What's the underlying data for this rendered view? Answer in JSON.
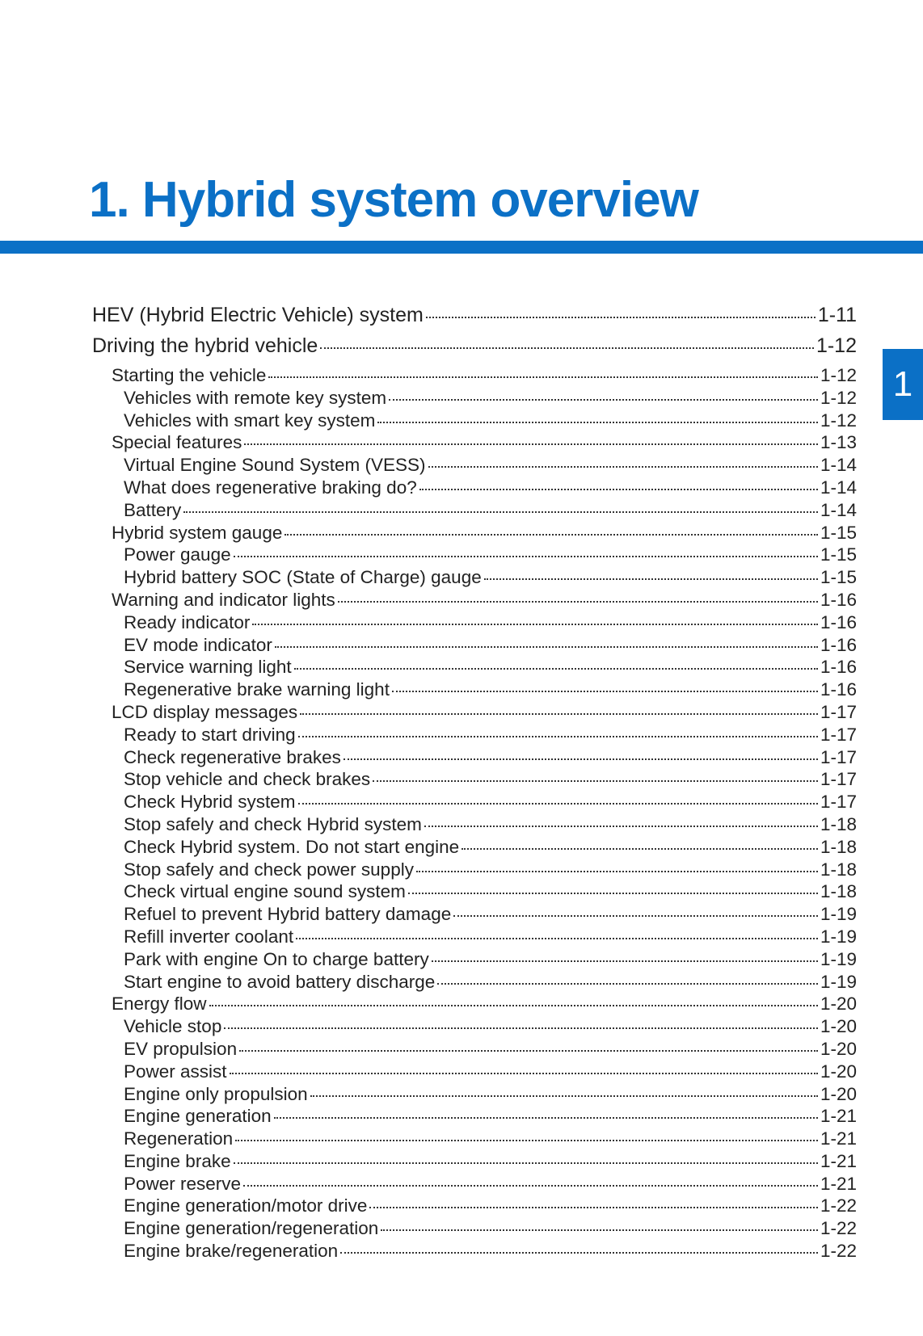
{
  "title": "1. Hybrid system overview",
  "chapter_tab": "1",
  "accent_color": "#0b70c6",
  "toc": [
    {
      "level": 0,
      "label": "HEV (Hybrid Electric Vehicle) system",
      "page": "1-11"
    },
    {
      "level": 0,
      "label": "Driving the hybrid vehicle",
      "page": "1-12"
    },
    {
      "level": 1,
      "label": "Starting the vehicle",
      "page": "1-12"
    },
    {
      "level": 2,
      "label": "Vehicles with remote key system",
      "page": "1-12"
    },
    {
      "level": 2,
      "label": "Vehicles with smart key system",
      "page": "1-12"
    },
    {
      "level": 1,
      "label": "Special features",
      "page": "1-13"
    },
    {
      "level": 2,
      "label": "Virtual Engine Sound System (VESS)",
      "page": "1-14"
    },
    {
      "level": 2,
      "label": "What does regenerative braking do?",
      "page": "1-14"
    },
    {
      "level": 2,
      "label": "Battery",
      "page": "1-14"
    },
    {
      "level": 1,
      "label": "Hybrid system gauge",
      "page": "1-15"
    },
    {
      "level": 2,
      "label": "Power gauge",
      "page": "1-15"
    },
    {
      "level": 2,
      "label": "Hybrid battery SOC (State of Charge) gauge",
      "page": "1-15"
    },
    {
      "level": 1,
      "label": "Warning and indicator lights",
      "page": "1-16"
    },
    {
      "level": 2,
      "label": "Ready indicator",
      "page": "1-16"
    },
    {
      "level": 2,
      "label": "EV mode indicator",
      "page": "1-16"
    },
    {
      "level": 2,
      "label": "Service warning light",
      "page": "1-16"
    },
    {
      "level": 2,
      "label": "Regenerative brake warning light",
      "page": "1-16"
    },
    {
      "level": 1,
      "label": "LCD display messages",
      "page": "1-17"
    },
    {
      "level": 2,
      "label": "Ready to start driving",
      "page": "1-17"
    },
    {
      "level": 2,
      "label": "Check regenerative brakes",
      "page": "1-17"
    },
    {
      "level": 2,
      "label": "Stop vehicle and check brakes",
      "page": "1-17"
    },
    {
      "level": 2,
      "label": "Check Hybrid system",
      "page": "1-17"
    },
    {
      "level": 2,
      "label": "Stop safely and check Hybrid system",
      "page": "1-18"
    },
    {
      "level": 2,
      "label": "Check Hybrid system. Do not start engine",
      "page": "1-18"
    },
    {
      "level": 2,
      "label": "Stop safely and check power supply",
      "page": "1-18"
    },
    {
      "level": 2,
      "label": "Check virtual engine sound system",
      "page": "1-18"
    },
    {
      "level": 2,
      "label": "Refuel to prevent Hybrid battery damage",
      "page": "1-19"
    },
    {
      "level": 2,
      "label": "Refill inverter coolant",
      "page": "1-19"
    },
    {
      "level": 2,
      "label": "Park with engine On to charge battery",
      "page": "1-19"
    },
    {
      "level": 2,
      "label": "Start engine to avoid battery discharge",
      "page": "1-19"
    },
    {
      "level": 1,
      "label": "Energy flow",
      "page": "1-20"
    },
    {
      "level": 2,
      "label": "Vehicle stop",
      "page": "1-20"
    },
    {
      "level": 2,
      "label": "EV propulsion",
      "page": "1-20"
    },
    {
      "level": 2,
      "label": "Power assist",
      "page": "1-20"
    },
    {
      "level": 2,
      "label": "Engine only propulsion",
      "page": "1-20"
    },
    {
      "level": 2,
      "label": "Engine generation",
      "page": "1-21"
    },
    {
      "level": 2,
      "label": "Regeneration",
      "page": "1-21"
    },
    {
      "level": 2,
      "label": "Engine brake",
      "page": "1-21"
    },
    {
      "level": 2,
      "label": "Power reserve",
      "page": "1-21"
    },
    {
      "level": 2,
      "label": "Engine generation/motor drive",
      "page": "1-22"
    },
    {
      "level": 2,
      "label": "Engine generation/regeneration",
      "page": "1-22"
    },
    {
      "level": 2,
      "label": "Engine brake/regeneration",
      "page": "1-22"
    }
  ]
}
